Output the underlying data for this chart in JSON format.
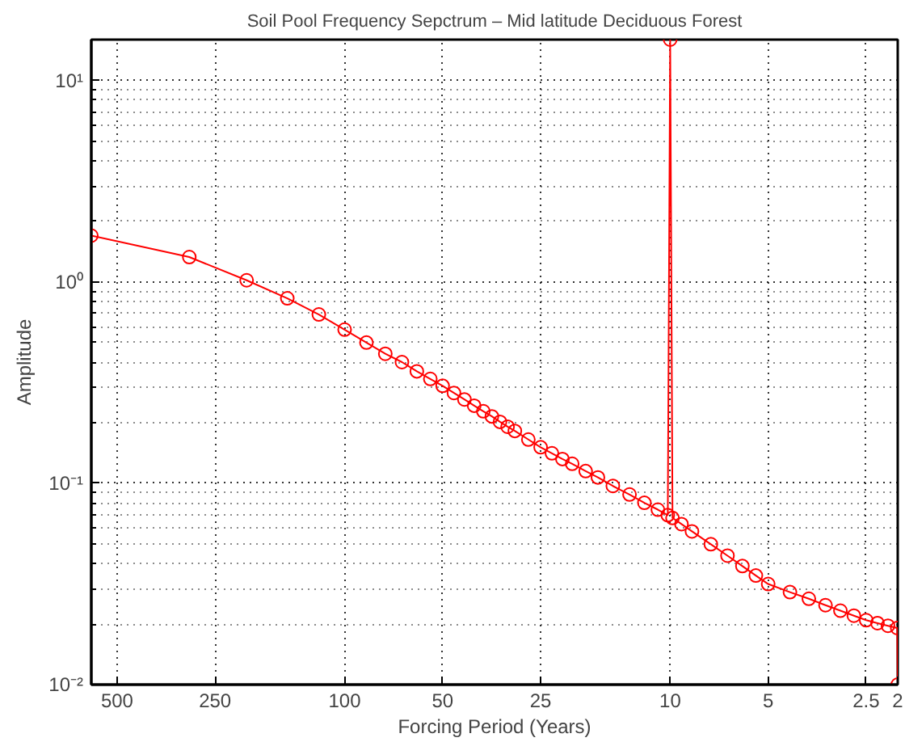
{
  "chart_data": {
    "type": "line",
    "title": "Soil Pool Frequency Sepctrum – Mid latitude Deciduous Forest",
    "xlabel": "Forcing Period (Years)",
    "ylabel": "Amplitude",
    "log": "xy",
    "grid": true,
    "marker": "circle",
    "line_style": "solid",
    "xlim": [
      600,
      2
    ],
    "xticks": [
      500,
      250,
      100,
      50,
      25,
      10,
      5,
      2.5,
      2
    ],
    "ylim": [
      0.01,
      16
    ],
    "yticks": [
      {
        "value": 0.01,
        "label": "10⁻²"
      },
      {
        "value": 0.1,
        "label": "10⁻¹"
      },
      {
        "value": 1,
        "label": "10⁰"
      },
      {
        "value": 10,
        "label": "10¹"
      }
    ],
    "x": [
      600,
      300,
      200,
      150,
      120,
      100,
      85.71,
      75,
      66.67,
      60,
      54.55,
      50,
      46.15,
      42.86,
      40,
      37.5,
      35.29,
      33.33,
      31.58,
      30,
      27.27,
      25,
      23.08,
      21.43,
      20,
      18.18,
      16.67,
      15,
      13.33,
      12,
      10.91,
      10.17,
      10,
      9.836,
      9.231,
      8.571,
      7.5,
      6.667,
      6,
      5.455,
      5,
      4.286,
      3.75,
      3.333,
      3,
      2.727,
      2.5,
      2.308,
      2.143,
      2.007,
      2
    ],
    "series": [
      {
        "color": "#ff0000",
        "values": [
          1.7,
          1.33,
          1.02,
          0.83,
          0.69,
          0.58,
          0.5,
          0.44,
          0.4,
          0.36,
          0.33,
          0.305,
          0.281,
          0.261,
          0.243,
          0.228,
          0.215,
          0.202,
          0.191,
          0.182,
          0.165,
          0.151,
          0.141,
          0.132,
          0.125,
          0.115,
          0.107,
          0.097,
          0.088,
          0.08,
          0.074,
          0.0695,
          16,
          0.0673,
          0.0627,
          0.0577,
          0.0498,
          0.0437,
          0.0388,
          0.0348,
          0.0316,
          0.0288,
          0.0267,
          0.0248,
          0.0233,
          0.022,
          0.0209,
          0.0202,
          0.0196,
          0.0191,
          0.01
        ]
      }
    ]
  }
}
